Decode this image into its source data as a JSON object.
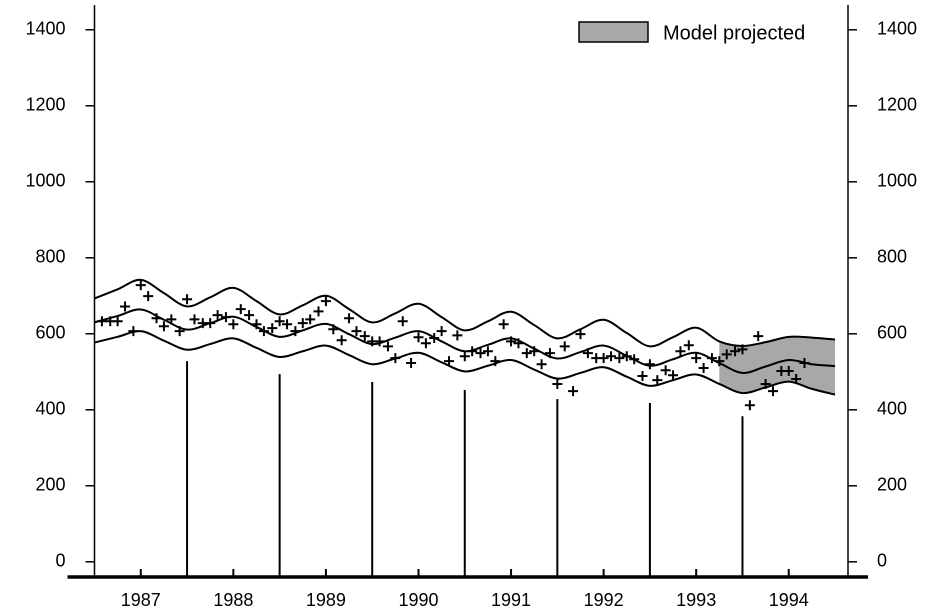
{
  "chart_data": {
    "type": "line",
    "xlim": [
      1987,
      1995.14
    ],
    "ylim": [
      -40,
      1460
    ],
    "yticks": [
      0,
      200,
      400,
      600,
      800,
      1000,
      1200,
      1400
    ],
    "xticks": [
      {
        "value": 1987.5,
        "label": "1987"
      },
      {
        "value": 1988.5,
        "label": "1988"
      },
      {
        "value": 1989.5,
        "label": "1989"
      },
      {
        "value": 1990.5,
        "label": "1990"
      },
      {
        "value": 1991.5,
        "label": "1991"
      },
      {
        "value": 1992.5,
        "label": "1992"
      },
      {
        "value": 1993.5,
        "label": "1993"
      },
      {
        "value": 1994.5,
        "label": "1994"
      }
    ],
    "x": [
      1987,
      1987.25,
      1987.5,
      1987.75,
      1988,
      1988.25,
      1988.5,
      1988.75,
      1989,
      1989.25,
      1989.5,
      1989.75,
      1990,
      1990.25,
      1990.5,
      1990.75,
      1991,
      1991.25,
      1991.5,
      1991.75,
      1992,
      1992.25,
      1992.5,
      1992.75,
      1993,
      1993.25,
      1993.5,
      1993.75,
      1994,
      1994.25,
      1994.5,
      1994.75,
      1995
    ],
    "series": [
      {
        "color": "#000000",
        "values": [
          693,
          717,
          742,
          707,
          672,
          696,
          721,
          686,
          651,
          675,
          700,
          665,
          630,
          654,
          679,
          644,
          609,
          633,
          658,
          623,
          588,
          612,
          637,
          602,
          567,
          591,
          616,
          580,
          568,
          578,
          592,
          590,
          585
        ]
      },
      {
        "color": "#000000",
        "values": [
          630,
          647,
          664,
          637,
          611,
          628,
          645,
          618,
          592,
          609,
          626,
          599,
          573,
          590,
          607,
          580,
          554,
          571,
          588,
          561,
          535,
          552,
          569,
          542,
          516,
          533,
          550,
          523,
          497,
          514,
          531,
          520,
          515
        ]
      },
      {
        "color": "#000000",
        "values": [
          577,
          592,
          607,
          582,
          558,
          573,
          588,
          563,
          539,
          554,
          569,
          544,
          520,
          535,
          550,
          525,
          501,
          516,
          531,
          506,
          482,
          497,
          512,
          487,
          463,
          478,
          493,
          468,
          444,
          459,
          474,
          455,
          440
        ]
      }
    ],
    "projected": {
      "name": "Model projected",
      "color": "#a8a8ab",
      "start": 1993.75
    },
    "points": {
      "color": "#000000",
      "x": [
        1987.08,
        1987.17,
        1987.25,
        1987.33,
        1987.42,
        1987.5,
        1987.58,
        1987.67,
        1987.75,
        1987.83,
        1987.92,
        1988,
        1988.08,
        1988.17,
        1988.25,
        1988.33,
        1988.42,
        1988.5,
        1988.58,
        1988.67,
        1988.75,
        1988.83,
        1988.92,
        1989,
        1989.08,
        1989.17,
        1989.25,
        1989.33,
        1989.42,
        1989.5,
        1989.58,
        1989.67,
        1989.75,
        1989.83,
        1989.92,
        1990,
        1990.08,
        1990.17,
        1990.25,
        1990.33,
        1990.42,
        1990.5,
        1990.58,
        1990.67,
        1990.75,
        1990.83,
        1990.92,
        1991,
        1991.08,
        1991.17,
        1991.25,
        1991.33,
        1991.42,
        1991.5,
        1991.58,
        1991.67,
        1991.75,
        1991.83,
        1991.92,
        1992,
        1992.08,
        1992.17,
        1992.25,
        1992.33,
        1992.42,
        1992.5,
        1992.58,
        1992.67,
        1992.75,
        1992.83,
        1992.92,
        1993,
        1993.08,
        1993.17,
        1993.25,
        1993.33,
        1993.42,
        1993.5,
        1993.58,
        1993.67,
        1993.75,
        1993.83,
        1993.92,
        1994,
        1994.08,
        1994.17,
        1994.25,
        1994.33,
        1994.42,
        1994.5,
        1994.58,
        1994.67
      ],
      "values": [
        633,
        633,
        633,
        672,
        607,
        728,
        699,
        641,
        620,
        638,
        607,
        691,
        638,
        628,
        628,
        649,
        644,
        625,
        665,
        649,
        625,
        607,
        615,
        633,
        625,
        607,
        628,
        638,
        659,
        686,
        612,
        583,
        641,
        607,
        594,
        580,
        580,
        567,
        536,
        633,
        523,
        591,
        575,
        589,
        607,
        528,
        596,
        541,
        554,
        549,
        554,
        528,
        625,
        580,
        575,
        549,
        554,
        520,
        549,
        468,
        567,
        449,
        599,
        549,
        536,
        536,
        541,
        536,
        541,
        533,
        489,
        520,
        478,
        504,
        491,
        554,
        570,
        536,
        510,
        536,
        528,
        546,
        554,
        559,
        412,
        594,
        468,
        449,
        502,
        502,
        481,
        523
      ]
    },
    "markers": {
      "color": "#000000",
      "x": [
        1988,
        1989,
        1990,
        1991,
        1992,
        1993,
        1994
      ],
      "values": [
        528,
        494,
        473,
        452,
        428,
        418,
        383
      ]
    }
  }
}
